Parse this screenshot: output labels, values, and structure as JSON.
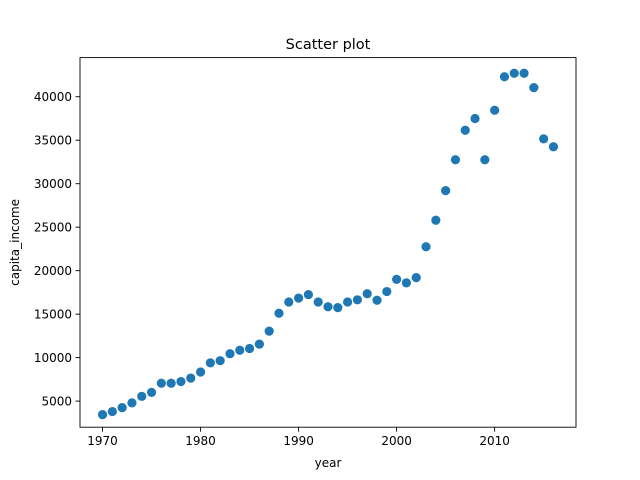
{
  "chart_data": {
    "type": "scatter",
    "title": "Scatter plot",
    "xlabel": "year",
    "ylabel": "capita_income",
    "xlim": [
      1967.7,
      2018.3
    ],
    "ylim": [
      2000,
      44500
    ],
    "x_ticks": [
      1970,
      1980,
      1990,
      2000,
      2010
    ],
    "y_ticks": [
      5000,
      10000,
      15000,
      20000,
      25000,
      30000,
      35000,
      40000
    ],
    "grid": false,
    "marker_color": "#1f77b4",
    "series": [
      {
        "x": [
          1970,
          1971,
          1972,
          1973,
          1974,
          1975,
          1976,
          1977,
          1978,
          1979,
          1980,
          1981,
          1982,
          1983,
          1984,
          1985,
          1986,
          1987,
          1988,
          1989,
          1990,
          1991,
          1992,
          1993,
          1994,
          1995,
          1996,
          1997,
          1998,
          1999,
          2000,
          2001,
          2002,
          2003,
          2004,
          2005,
          2006,
          2007,
          2008,
          2009,
          2010,
          2011,
          2012,
          2013,
          2014,
          2015,
          2016
        ],
        "y": [
          3450,
          3800,
          4250,
          4800,
          5550,
          6000,
          7050,
          7050,
          7250,
          7650,
          8350,
          9400,
          9650,
          10450,
          10850,
          11050,
          11550,
          13050,
          15100,
          16400,
          16850,
          17250,
          16400,
          15850,
          15750,
          16400,
          16650,
          17350,
          16600,
          17600,
          19000,
          18600,
          19200,
          22750,
          25800,
          29200,
          32750,
          36150,
          37500,
          32750,
          38450,
          42300,
          42700,
          42700,
          41050,
          35150,
          34250
        ]
      }
    ]
  }
}
